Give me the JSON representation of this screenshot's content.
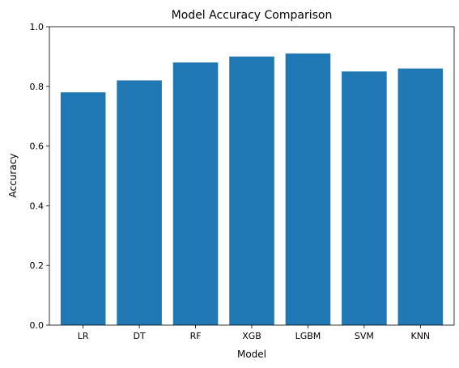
{
  "chart_data": {
    "type": "bar",
    "title": "Model Accuracy Comparison",
    "xlabel": "Model",
    "ylabel": "Accuracy",
    "categories": [
      "LR",
      "DT",
      "RF",
      "XGB",
      "LGBM",
      "SVM",
      "KNN"
    ],
    "values": [
      0.78,
      0.82,
      0.88,
      0.9,
      0.91,
      0.85,
      0.86
    ],
    "ylim": [
      0,
      1.0
    ],
    "yticks": [
      "0.0",
      "0.2",
      "0.4",
      "0.6",
      "0.8",
      "1.0"
    ],
    "grid": false,
    "bar_color": "#1f77b4"
  }
}
